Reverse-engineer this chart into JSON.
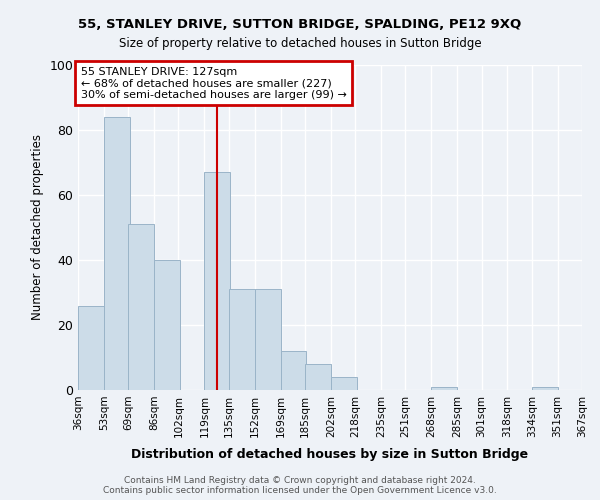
{
  "title": "55, STANLEY DRIVE, SUTTON BRIDGE, SPALDING, PE12 9XQ",
  "subtitle": "Size of property relative to detached houses in Sutton Bridge",
  "xlabel": "Distribution of detached houses by size in Sutton Bridge",
  "ylabel": "Number of detached properties",
  "footer_line1": "Contains HM Land Registry data © Crown copyright and database right 2024.",
  "footer_line2": "Contains public sector information licensed under the Open Government Licence v3.0.",
  "annotation_line1": "55 STANLEY DRIVE: 127sqm",
  "annotation_line2": "← 68% of detached houses are smaller (227)",
  "annotation_line3": "30% of semi-detached houses are larger (99) →",
  "property_size": 127,
  "bar_color": "#ccdce8",
  "bar_edge_color": "#9ab4c8",
  "vline_color": "#cc0000",
  "annotation_box_color": "#cc0000",
  "background_color": "#eef2f7",
  "grid_color": "#ffffff",
  "bins": [
    36,
    53,
    69,
    86,
    102,
    119,
    135,
    152,
    169,
    185,
    202,
    218,
    235,
    251,
    268,
    285,
    301,
    318,
    334,
    351,
    367
  ],
  "bin_labels": [
    "36sqm",
    "53sqm",
    "69sqm",
    "86sqm",
    "102sqm",
    "119sqm",
    "135sqm",
    "152sqm",
    "169sqm",
    "185sqm",
    "202sqm",
    "218sqm",
    "235sqm",
    "251sqm",
    "268sqm",
    "285sqm",
    "301sqm",
    "318sqm",
    "334sqm",
    "351sqm",
    "367sqm"
  ],
  "values": [
    26,
    84,
    51,
    40,
    0,
    67,
    31,
    31,
    12,
    8,
    4,
    0,
    0,
    0,
    1,
    0,
    0,
    0,
    1,
    0,
    0
  ],
  "ylim": [
    0,
    100
  ],
  "yticks": [
    0,
    20,
    40,
    60,
    80,
    100
  ]
}
